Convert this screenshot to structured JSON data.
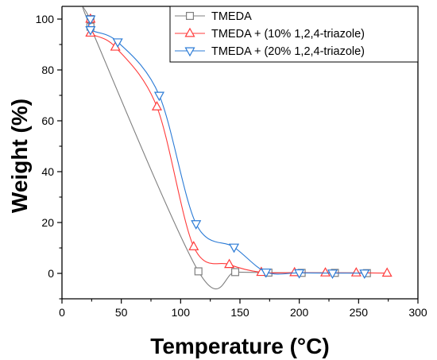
{
  "chart_data": {
    "type": "line",
    "xlabel": "Temperature (°C)",
    "ylabel": "Weight (%)",
    "xlim": [
      0,
      300
    ],
    "ylim": [
      -10,
      105
    ],
    "xticks": [
      0,
      50,
      100,
      150,
      200,
      250,
      300
    ],
    "yticks": [
      0,
      20,
      40,
      60,
      80,
      100
    ],
    "grid": false,
    "legend_position": "top-right",
    "series": [
      {
        "name": "TMEDA",
        "color": "#7f7f7f",
        "marker": "square",
        "x": [
          24,
          24,
          115,
          146,
          174,
          202,
          230,
          257
        ],
        "y": [
          100,
          97,
          0.8,
          0.5,
          0.3,
          0.2,
          0.2,
          0.1
        ]
      },
      {
        "name": "TMEDA + (10% 1,2,4-triazole)",
        "color": "#ff3b3b",
        "marker": "triangle-up",
        "x": [
          24,
          24,
          45,
          80,
          111,
          141,
          168,
          196,
          222,
          248,
          274
        ],
        "y": [
          100,
          94.5,
          89,
          65.5,
          10.5,
          3.5,
          0.4,
          0.3,
          0.2,
          0.2,
          0.1
        ]
      },
      {
        "name": "TMEDA + (20% 1,2,4-triazole)",
        "color": "#2b7bd6",
        "marker": "triangle-down",
        "x": [
          24,
          24,
          47,
          82,
          113,
          145,
          172,
          200,
          228,
          255
        ],
        "y": [
          100,
          95.8,
          91,
          70,
          19.5,
          10.3,
          0.5,
          0.2,
          0.1,
          0.1
        ]
      }
    ]
  }
}
